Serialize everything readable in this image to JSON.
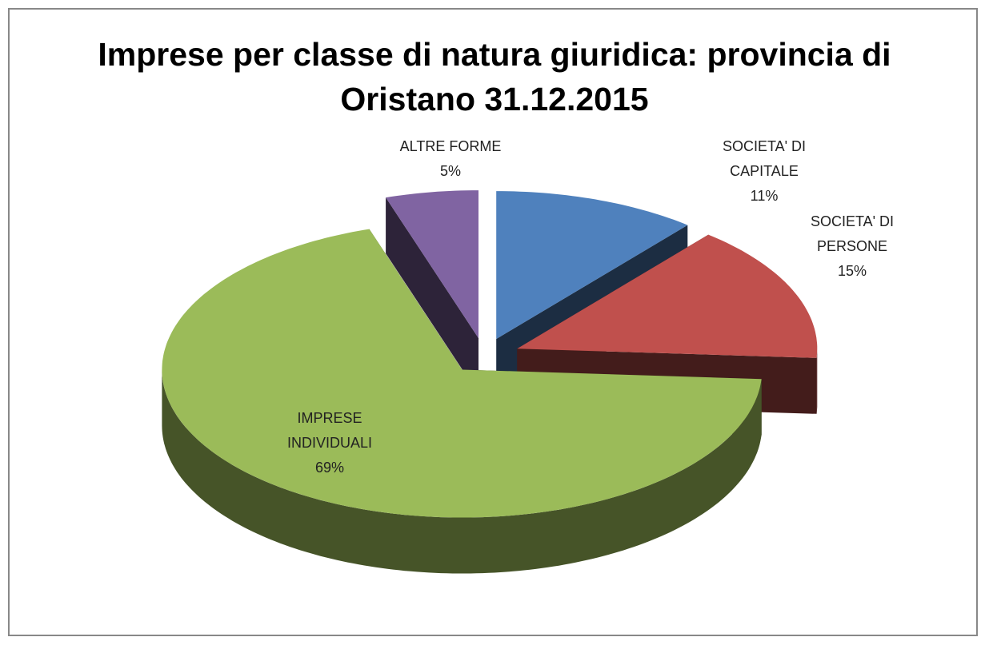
{
  "chart_data": {
    "type": "pie",
    "title": "Imprese per classe di natura giuridica: provincia di Oristano 31.12.2015",
    "categories": [
      "SOCIETA' DI CAPITALE",
      "SOCIETA' DI PERSONE",
      "IMPRESE INDIVIDUALI",
      "ALTRE FORME"
    ],
    "values": [
      11,
      15,
      69,
      5
    ],
    "value_labels": [
      "11%",
      "15%",
      "69%",
      "5%"
    ],
    "colors": [
      "#4f81bd",
      "#c0504d",
      "#9bbb59",
      "#8064a2"
    ]
  }
}
